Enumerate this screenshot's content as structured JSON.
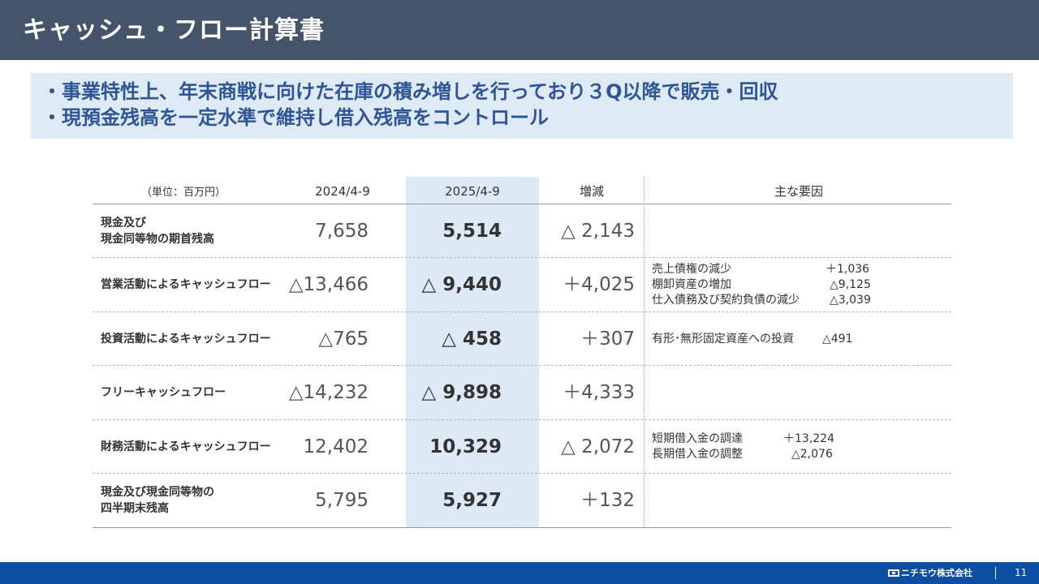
{
  "header": {
    "title": "キャッシュ・フロー計算書"
  },
  "summary": [
    "・事業特性上、年末商戦に向けた在庫の積み増しを行っており３Q以降で販売・回収",
    "・現預金残高を一定水準で維持し借入残高をコントロール"
  ],
  "table": {
    "unit": "（単位：百万円）",
    "columns": [
      "2024/4-9",
      "2025/4-9",
      "増減",
      "主な要因"
    ],
    "rows": [
      {
        "label": [
          "現金及び",
          "現金同等物の期首残高"
        ],
        "prev": "7,658",
        "curr": "5,514",
        "diff": "△ 2,143",
        "factors": []
      },
      {
        "label": [
          "営業活動によるキャッシュフロー"
        ],
        "prev": "△13,466",
        "curr": "△ 9,440",
        "diff": "＋4,025",
        "factors": [
          {
            "text": "売上債権の減少",
            "value": "＋1,036"
          },
          {
            "text": "棚卸資産の増加",
            "value": "△9,125"
          },
          {
            "text": "仕入債務及び契約負債の減少",
            "value": "△3,039"
          }
        ]
      },
      {
        "label": [
          "投資活動によるキャッシュフロー"
        ],
        "prev": "△765",
        "curr": "△ 458",
        "diff": "＋307",
        "factors": [
          {
            "text": "有形･無形固定資産への投資",
            "value": "△491"
          }
        ]
      },
      {
        "label": [
          "フリーキャッシュフロー"
        ],
        "prev": "△14,232",
        "curr": "△ 9,898",
        "diff": "＋4,333",
        "factors": []
      },
      {
        "label": [
          "財務活動によるキャッシュフロー"
        ],
        "prev": "12,402",
        "curr": "10,329",
        "diff": "△ 2,072",
        "factors": [
          {
            "text": "短期借入金の調達",
            "value": "＋13,224"
          },
          {
            "text": "長期借入金の調整",
            "value": "△2,076"
          }
        ]
      },
      {
        "label": [
          "現金及び現金同等物の",
          "四半期末残高"
        ],
        "prev": "5,795",
        "curr": "5,927",
        "diff": "＋132",
        "factors": []
      }
    ]
  },
  "footer": {
    "company": "ニチモウ株式会社",
    "page": "11"
  }
}
